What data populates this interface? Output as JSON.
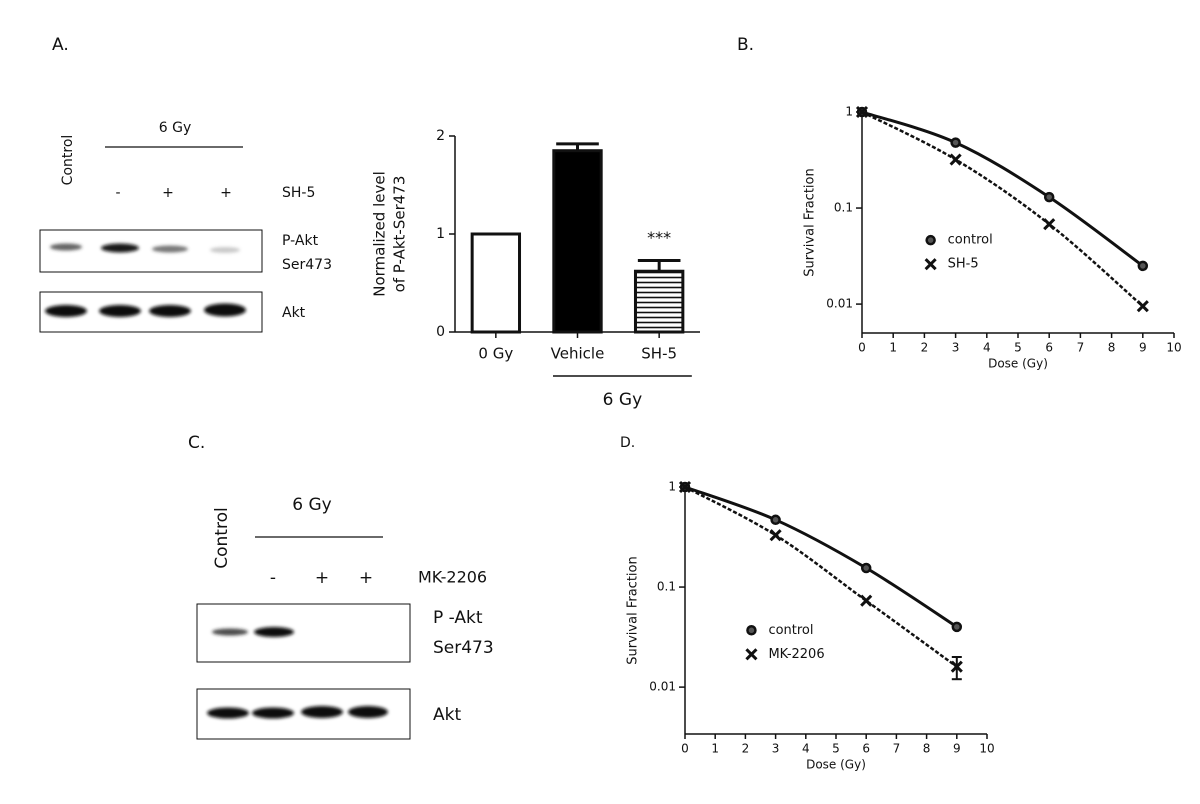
{
  "panel_labels": [
    "A.",
    "B.",
    "C.",
    "D."
  ],
  "blot_a": {
    "control_label": "Control",
    "group_label": "6 Gy",
    "treatments": [
      "-",
      "+",
      "+"
    ],
    "treatment_label": "SH-5",
    "row_labels": [
      [
        "P-Akt",
        "Ser473"
      ],
      [
        "Akt"
      ]
    ]
  },
  "blot_c": {
    "control_label": "Control",
    "group_label": "6 Gy",
    "treatments": [
      "-",
      "+",
      "+"
    ],
    "treatment_label": "MK-2206",
    "row_labels": [
      [
        "P -Akt",
        "Ser473"
      ],
      [
        "Akt"
      ]
    ]
  },
  "chart_data": [
    {
      "type": "bar",
      "ylabel": [
        "Normalized level",
        "of P-Akt-Ser473"
      ],
      "categories": [
        "0 Gy",
        "Vehicle",
        "SH-5"
      ],
      "values": [
        1,
        1.85,
        0.62
      ],
      "errors": [
        0,
        0.07,
        0.11
      ],
      "fills": [
        "white",
        "black",
        "stripes"
      ],
      "annotation": "***",
      "group_label": "6 Gy",
      "ylim": [
        0,
        2
      ],
      "yticks": [
        0,
        1,
        2
      ]
    },
    {
      "type": "line",
      "xlabel": "Dose (Gy)",
      "ylabel": "Survival Fraction",
      "log_y": true,
      "legend": "center",
      "x": [
        0,
        3,
        6,
        9
      ],
      "xlim": [
        0,
        10
      ],
      "xticks": [
        0,
        1,
        2,
        3,
        4,
        5,
        6,
        7,
        8,
        9,
        10
      ],
      "ylim": [
        0.005,
        1
      ],
      "yticks": [
        0.01,
        0.1,
        1
      ],
      "series": [
        {
          "name": "control",
          "color": "#111111",
          "marker": "circle",
          "dashed": false,
          "values": [
            1,
            0.48,
            0.13,
            0.025
          ]
        },
        {
          "name": "SH-5",
          "color": "#111111",
          "marker": "cross",
          "dashed": true,
          "values": [
            1,
            0.32,
            0.068,
            0.0095
          ]
        }
      ]
    },
    {
      "type": "line",
      "xlabel": "Dose (Gy)",
      "ylabel": "Survival Fraction",
      "log_y": true,
      "legend": "center",
      "x": [
        0,
        3,
        6,
        9
      ],
      "xlim": [
        0,
        10
      ],
      "xticks": [
        0,
        1,
        2,
        3,
        4,
        5,
        6,
        7,
        8,
        9,
        10
      ],
      "ylim": [
        0.0034,
        1
      ],
      "yticks": [
        0.01,
        0.1,
        1
      ],
      "series": [
        {
          "name": "control",
          "color": "#111111",
          "marker": "circle",
          "dashed": false,
          "values": [
            1,
            0.47,
            0.155,
            0.04
          ]
        },
        {
          "name": "MK-2206",
          "color": "#111111",
          "marker": "cross",
          "dashed": true,
          "values": [
            1,
            0.33,
            0.073,
            0.016
          ],
          "errors": [
            0,
            0,
            0,
            0.004
          ]
        }
      ]
    }
  ]
}
